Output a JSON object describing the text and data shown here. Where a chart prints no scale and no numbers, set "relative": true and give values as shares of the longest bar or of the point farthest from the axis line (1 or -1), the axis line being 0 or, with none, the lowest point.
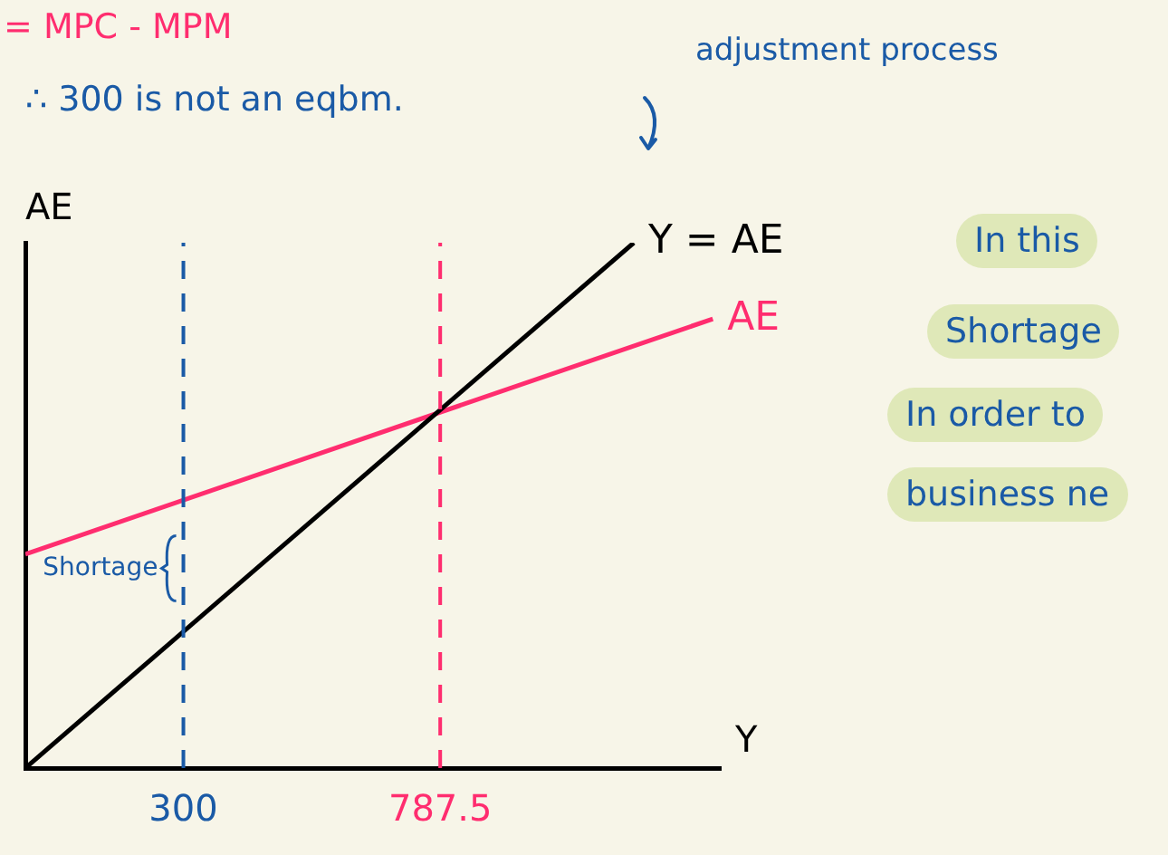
{
  "chart_data": {
    "type": "line",
    "relative": true,
    "xlabel": "Y",
    "ylabel": "AE",
    "xlim": [
      0,
      1320
    ],
    "xticks": [
      300,
      787.5
    ],
    "series": [
      {
        "name": "Y = AE",
        "color": "#000000",
        "x": [
          0,
          1155
        ],
        "values": [
          0,
          1
        ]
      },
      {
        "name": "AE",
        "color": "#ff2d6f",
        "x": [
          0,
          1305
        ],
        "values": [
          0.407,
          0.855
        ]
      }
    ],
    "ref_lines": [
      {
        "axis": "x",
        "value": 300,
        "color": "#1a5aa6",
        "line_style": "dashed"
      },
      {
        "axis": "x",
        "value": 787.5,
        "color": "#ff2d6f",
        "line_style": "dashed"
      }
    ],
    "annotations": [
      "= MPC - MPM",
      "∴ 300 is not an eqbm.",
      "adjustment process",
      "In this",
      "Shortage",
      "In order to",
      "business ne",
      {
        "text": "Shortage",
        "x": 300,
        "y": 0.38
      }
    ],
    "grid": false,
    "legend": false,
    "marker": "none",
    "line_style": "solid"
  }
}
